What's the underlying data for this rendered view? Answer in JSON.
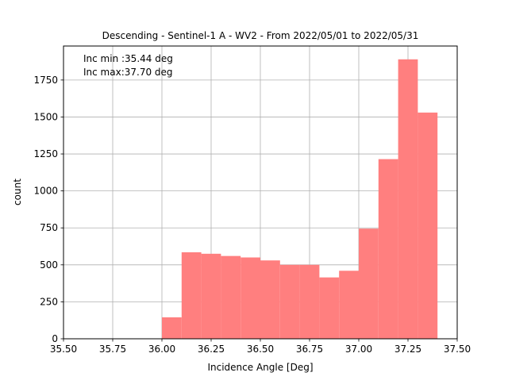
{
  "chart_data": {
    "type": "bar",
    "title": "Descending - Sentinel-1 A - WV2 - From 2022/05/01 to 2022/05/31",
    "xlabel": "Incidence Angle [Deg]",
    "ylabel": "count",
    "xlim": [
      35.5,
      37.5
    ],
    "ylim": [
      0,
      1980
    ],
    "xticks": [
      "35.50",
      "35.75",
      "36.00",
      "36.25",
      "36.50",
      "36.75",
      "37.00",
      "37.25",
      "37.50"
    ],
    "yticks": [
      "0",
      "250",
      "500",
      "750",
      "1000",
      "1250",
      "1500",
      "1750"
    ],
    "grid": true,
    "bar_color": "#ff7f7f",
    "bins": [
      {
        "x0": 36.0,
        "x1": 36.1,
        "value": 145
      },
      {
        "x0": 36.1,
        "x1": 36.2,
        "value": 585
      },
      {
        "x0": 36.2,
        "x1": 36.3,
        "value": 575
      },
      {
        "x0": 36.3,
        "x1": 36.4,
        "value": 560
      },
      {
        "x0": 36.4,
        "x1": 36.5,
        "value": 550
      },
      {
        "x0": 36.5,
        "x1": 36.6,
        "value": 530
      },
      {
        "x0": 36.6,
        "x1": 36.7,
        "value": 500
      },
      {
        "x0": 36.7,
        "x1": 36.8,
        "value": 500
      },
      {
        "x0": 36.8,
        "x1": 36.9,
        "value": 415
      },
      {
        "x0": 36.9,
        "x1": 37.0,
        "value": 460
      },
      {
        "x0": 37.0,
        "x1": 37.1,
        "value": 745
      },
      {
        "x0": 37.1,
        "x1": 37.2,
        "value": 1215
      },
      {
        "x0": 37.2,
        "x1": 37.3,
        "value": 1890
      },
      {
        "x0": 37.3,
        "x1": 37.4,
        "value": 1530
      }
    ],
    "annotations": [
      "Inc min :35.44 deg",
      "Inc max:37.70 deg"
    ]
  }
}
